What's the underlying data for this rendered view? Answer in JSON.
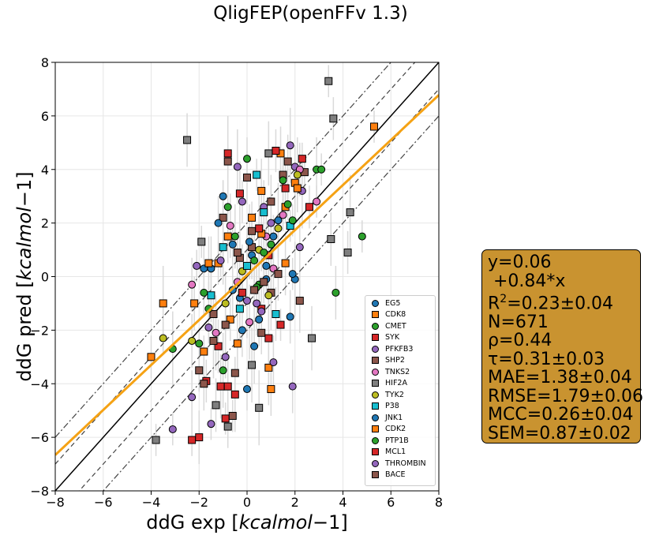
{
  "chart_data": {
    "type": "scatter",
    "title": "QligFEP(openFFv 1.3)",
    "xlabel": "ddG exp [$kcal mol^-1$]",
    "ylabel": "ddG pred [$kcal mol^-1$]",
    "xlim": [
      -8,
      8
    ],
    "ylim": [
      -8,
      8
    ],
    "ticks": [
      -8,
      -6,
      -4,
      -2,
      0,
      2,
      4,
      6,
      8
    ],
    "tick_labels": [
      "−8",
      "−6",
      "−4",
      "−2",
      "0",
      "2",
      "4",
      "6",
      "8"
    ],
    "grid": true,
    "legend_position": "bottom-right",
    "fit_line": {
      "intercept": 0.06,
      "slope": 0.84,
      "color": "#f5a214"
    },
    "reference_lines": [
      {
        "offset": 0,
        "style": "solid"
      },
      {
        "offset": 1,
        "style": "dashed"
      },
      {
        "offset": -1,
        "style": "dashed"
      },
      {
        "offset": 2,
        "style": "dashdot"
      },
      {
        "offset": -2,
        "style": "dashdot"
      }
    ],
    "series": [
      {
        "name": "EG5",
        "marker": "circle",
        "color": "#1f77b4",
        "points": [
          [
            -1.0,
            3.0
          ],
          [
            0.5,
            -1.6
          ],
          [
            1.3,
            2.1
          ],
          [
            -0.3,
            -0.8
          ],
          [
            0.8,
            0.4
          ],
          [
            -0.6,
            1.2
          ],
          [
            1.8,
            -1.5
          ],
          [
            2.0,
            -0.1
          ],
          [
            0.0,
            -4.2
          ],
          [
            -1.5,
            0.3
          ],
          [
            0.2,
            0.8
          ],
          [
            -0.2,
            -2.0
          ]
        ]
      },
      {
        "name": "CDK8",
        "marker": "square",
        "color": "#ff7f0e",
        "points": [
          [
            5.3,
            5.6
          ],
          [
            1.4,
            4.6
          ],
          [
            -3.5,
            -1.0
          ],
          [
            -4.0,
            -3.0
          ],
          [
            0.6,
            3.2
          ],
          [
            -1.8,
            -2.8
          ],
          [
            1.0,
            -4.2
          ],
          [
            2.0,
            3.5
          ],
          [
            -1.2,
            0.5
          ],
          [
            -0.4,
            -2.5
          ],
          [
            1.6,
            2.6
          ],
          [
            -0.8,
            1.5
          ]
        ]
      },
      {
        "name": "CMET",
        "marker": "circle",
        "color": "#2ca02c",
        "points": [
          [
            4.8,
            1.5
          ],
          [
            3.7,
            -0.6
          ],
          [
            -3.1,
            -2.7
          ],
          [
            0.0,
            4.4
          ],
          [
            2.9,
            4.0
          ],
          [
            1.7,
            2.7
          ],
          [
            -0.8,
            2.6
          ],
          [
            0.5,
            -0.3
          ],
          [
            -1.8,
            -0.6
          ],
          [
            1.0,
            1.2
          ],
          [
            -2.0,
            -2.5
          ],
          [
            0.3,
            0.6
          ]
        ]
      },
      {
        "name": "SYK",
        "marker": "square",
        "color": "#d62728",
        "points": [
          [
            -2.3,
            -6.1
          ],
          [
            -2.0,
            -6.0
          ],
          [
            -0.8,
            4.6
          ],
          [
            1.2,
            4.7
          ],
          [
            -1.1,
            -4.1
          ],
          [
            2.3,
            4.4
          ],
          [
            0.6,
            -1.2
          ],
          [
            -0.5,
            -4.4
          ],
          [
            -1.7,
            -3.9
          ],
          [
            0.9,
            0.8
          ],
          [
            -0.2,
            -0.6
          ],
          [
            1.6,
            3.3
          ]
        ]
      },
      {
        "name": "PFKFB3",
        "marker": "circle",
        "color": "#9467bd",
        "points": [
          [
            -3.1,
            -5.7
          ],
          [
            -2.3,
            -4.5
          ],
          [
            -0.4,
            4.1
          ],
          [
            2.0,
            4.1
          ],
          [
            1.0,
            2.0
          ],
          [
            -1.6,
            -1.9
          ],
          [
            1.9,
            -4.1
          ],
          [
            2.3,
            3.2
          ],
          [
            -0.9,
            -3.0
          ],
          [
            0.4,
            -1.0
          ],
          [
            -2.1,
            0.4
          ],
          [
            0.7,
            2.6
          ]
        ]
      },
      {
        "name": "SHP2",
        "marker": "square",
        "color": "#8c564b",
        "points": [
          [
            -0.8,
            4.3
          ],
          [
            0.0,
            3.7
          ],
          [
            1.0,
            -0.6
          ],
          [
            -1.4,
            -1.4
          ],
          [
            0.2,
            1.1
          ],
          [
            -0.5,
            -3.6
          ],
          [
            1.5,
            3.8
          ],
          [
            -1.0,
            2.2
          ],
          [
            0.6,
            -2.1
          ],
          [
            -0.3,
            0.7
          ],
          [
            2.4,
            3.9
          ],
          [
            -1.8,
            -4.0
          ]
        ]
      },
      {
        "name": "TNKS2",
        "marker": "circle",
        "color": "#e377c2",
        "points": [
          [
            2.9,
            2.8
          ],
          [
            2.2,
            4.0
          ],
          [
            -1.3,
            -2.1
          ],
          [
            0.8,
            1.5
          ],
          [
            -0.4,
            -0.2
          ],
          [
            1.5,
            2.3
          ],
          [
            -2.3,
            -0.3
          ],
          [
            0.1,
            -1.7
          ],
          [
            1.1,
            0.3
          ],
          [
            -0.7,
            1.9
          ]
        ]
      },
      {
        "name": "HIF2A",
        "marker": "square",
        "color": "#7f7f7f",
        "points": [
          [
            3.4,
            7.3
          ],
          [
            -2.5,
            5.1
          ],
          [
            4.3,
            2.4
          ],
          [
            4.2,
            0.9
          ],
          [
            2.7,
            -2.3
          ],
          [
            -3.8,
            -6.1
          ],
          [
            -1.3,
            -4.8
          ],
          [
            0.5,
            -4.9
          ],
          [
            3.6,
            5.9
          ],
          [
            0.9,
            4.6
          ],
          [
            -1.9,
            1.3
          ],
          [
            3.5,
            1.4
          ],
          [
            0.2,
            -3.3
          ],
          [
            -0.8,
            -5.6
          ]
        ]
      },
      {
        "name": "TYK2",
        "marker": "circle",
        "color": "#bcbd22",
        "points": [
          [
            -3.5,
            -2.3
          ],
          [
            -2.3,
            -2.4
          ],
          [
            2.1,
            3.8
          ],
          [
            0.5,
            1.0
          ],
          [
            -0.9,
            -1.0
          ],
          [
            1.3,
            1.8
          ],
          [
            -0.2,
            0.2
          ],
          [
            0.9,
            -0.7
          ]
        ]
      },
      {
        "name": "P38",
        "marker": "square",
        "color": "#17becf",
        "points": [
          [
            0.4,
            3.8
          ],
          [
            1.2,
            -1.4
          ],
          [
            -1.0,
            1.1
          ],
          [
            0.7,
            2.4
          ],
          [
            -0.3,
            -1.2
          ],
          [
            1.8,
            1.9
          ],
          [
            -1.5,
            -0.7
          ],
          [
            0.0,
            0.4
          ]
        ]
      },
      {
        "name": "JNK1",
        "marker": "circle",
        "color": "#1f77b4",
        "points": [
          [
            1.9,
            0.1
          ],
          [
            -1.8,
            0.3
          ],
          [
            0.3,
            -2.6
          ],
          [
            1.1,
            1.5
          ],
          [
            -0.6,
            -0.5
          ],
          [
            0.8,
            -0.1
          ],
          [
            -1.2,
            2.0
          ],
          [
            0.1,
            1.3
          ]
        ]
      },
      {
        "name": "CDK2",
        "marker": "square",
        "color": "#ff7f0e",
        "points": [
          [
            2.1,
            3.3
          ],
          [
            -1.6,
            0.5
          ],
          [
            0.9,
            -3.4
          ],
          [
            -0.7,
            -1.6
          ],
          [
            1.6,
            0.5
          ],
          [
            0.2,
            2.2
          ],
          [
            -2.2,
            -1.0
          ],
          [
            0.6,
            1.6
          ]
        ]
      },
      {
        "name": "PTP1B",
        "marker": "circle",
        "color": "#2ca02c",
        "points": [
          [
            3.1,
            4.0
          ],
          [
            1.5,
            3.6
          ],
          [
            -1.0,
            -3.5
          ],
          [
            0.4,
            -0.4
          ],
          [
            -0.5,
            1.5
          ],
          [
            1.9,
            2.1
          ],
          [
            -1.6,
            -1.2
          ],
          [
            0.7,
            0.9
          ]
        ]
      },
      {
        "name": "MCL1",
        "marker": "square",
        "color": "#d62728",
        "points": [
          [
            -0.9,
            -5.3
          ],
          [
            -0.8,
            -4.1
          ],
          [
            0.9,
            -2.3
          ],
          [
            2.6,
            2.6
          ],
          [
            -0.3,
            3.1
          ],
          [
            1.4,
            -1.8
          ],
          [
            -1.2,
            -2.6
          ],
          [
            0.5,
            1.8
          ]
        ]
      },
      {
        "name": "THROMBIN",
        "marker": "circle",
        "color": "#9467bd",
        "points": [
          [
            -1.5,
            -5.5
          ],
          [
            1.1,
            -3.2
          ],
          [
            1.8,
            4.9
          ],
          [
            -0.2,
            2.8
          ],
          [
            0.6,
            -1.3
          ],
          [
            -1.1,
            0.6
          ],
          [
            2.2,
            1.1
          ],
          [
            0.0,
            -0.9
          ]
        ]
      },
      {
        "name": "BACE",
        "marker": "square",
        "color": "#8c564b",
        "points": [
          [
            -0.6,
            -5.2
          ],
          [
            1.7,
            4.3
          ],
          [
            0.3,
            -0.5
          ],
          [
            -2.0,
            -3.5
          ],
          [
            2.2,
            -0.9
          ],
          [
            -0.4,
            0.9
          ],
          [
            1.0,
            2.8
          ],
          [
            -1.4,
            -2.4
          ],
          [
            0.7,
            -0.2
          ],
          [
            -0.9,
            -1.8
          ],
          [
            0.2,
            1.7
          ],
          [
            1.3,
            0.1
          ]
        ]
      }
    ]
  },
  "stats": {
    "line1": "y=0.06",
    "line2": " +0.84*x",
    "r2_prefix": "R",
    "r2_sup": "2",
    "r2_value": "=0.23±0.04",
    "n": "N=671",
    "rho": "ρ=0.44",
    "tau": "τ=0.31±0.03",
    "mae": "MAE=1.38±0.04",
    "rmse": "RMSE=1.79±0.06",
    "mcc": "MCC=0.26±0.04",
    "sem": "SEM=0.87±0.02",
    "box_color": "#c99330"
  }
}
